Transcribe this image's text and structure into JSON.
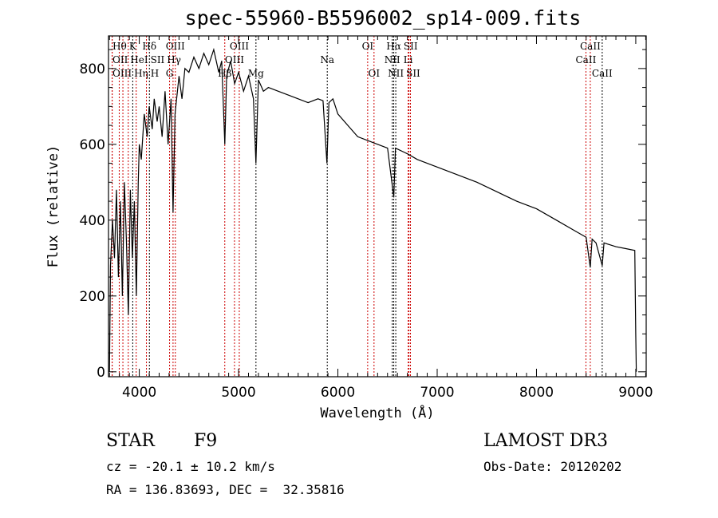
{
  "title": "spec-55960-B5596002_sp14-009.fits",
  "info": {
    "class": "STAR",
    "subclass": "F9",
    "cz": "cz = -20.1 ± 10.2 km/s",
    "radec": "RA = 136.83693, DEC =  32.35816",
    "survey": "LAMOST DR3",
    "obsdate": "Obs-Date: 20120202"
  },
  "chart_data": {
    "type": "line",
    "title": "spec-55960-B5596002_sp14-009.fits",
    "xlabel": "Wavelength (Å)",
    "ylabel": "Flux (relative)",
    "xlim": [
      3690,
      9105
    ],
    "ylim": [
      -13,
      886
    ],
    "xticks": [
      4000,
      5000,
      6000,
      7000,
      8000,
      9000
    ],
    "yticks": [
      0,
      200,
      400,
      600,
      800
    ],
    "x": [
      3700,
      3710,
      3730,
      3750,
      3770,
      3790,
      3810,
      3830,
      3850,
      3870,
      3890,
      3910,
      3930,
      3950,
      3970,
      3990,
      4000,
      4020,
      4050,
      4080,
      4100,
      4130,
      4150,
      4180,
      4200,
      4230,
      4260,
      4290,
      4320,
      4340,
      4360,
      4400,
      4430,
      4460,
      4500,
      4550,
      4600,
      4650,
      4700,
      4750,
      4800,
      4830,
      4861,
      4880,
      4920,
      4960,
      5000,
      5050,
      5100,
      5150,
      5175,
      5200,
      5250,
      5300,
      5400,
      5500,
      5600,
      5700,
      5800,
      5850,
      5890,
      5910,
      5950,
      6000,
      6100,
      6200,
      6300,
      6400,
      6500,
      6563,
      6580,
      6700,
      6800,
      6900,
      7000,
      7200,
      7400,
      7600,
      7800,
      8000,
      8200,
      8400,
      8500,
      8542,
      8560,
      8600,
      8662,
      8680,
      8800,
      8900,
      8990,
      9000,
      9005
    ],
    "y": [
      0,
      280,
      400,
      300,
      480,
      250,
      450,
      200,
      500,
      350,
      150,
      480,
      300,
      450,
      200,
      500,
      600,
      560,
      680,
      620,
      700,
      640,
      720,
      660,
      700,
      620,
      740,
      600,
      720,
      420,
      680,
      780,
      720,
      800,
      790,
      830,
      800,
      840,
      810,
      850,
      790,
      820,
      600,
      780,
      820,
      760,
      790,
      740,
      780,
      720,
      550,
      770,
      740,
      750,
      740,
      730,
      720,
      710,
      720,
      715,
      550,
      710,
      720,
      680,
      650,
      620,
      610,
      600,
      590,
      460,
      590,
      575,
      560,
      550,
      540,
      520,
      500,
      475,
      450,
      430,
      400,
      370,
      355,
      275,
      350,
      340,
      280,
      340,
      330,
      325,
      320,
      100,
      0
    ],
    "lines": [
      {
        "w": 3727,
        "label": "OII",
        "row": 1,
        "color": "#cc0000"
      },
      {
        "w": 3727,
        "label": "OIII",
        "row": 2,
        "color": "#cc0000"
      },
      {
        "w": 3798,
        "label": "Hθ",
        "row": 0,
        "color": "#cc0000"
      },
      {
        "w": 3835,
        "label": "Hη",
        "row": 2,
        "color": "#cc0000"
      },
      {
        "w": 3889,
        "label": "HeI",
        "row": 1,
        "color": "#cc0000"
      },
      {
        "w": 3934,
        "label": "K",
        "row": 0,
        "color": "#000000"
      },
      {
        "w": 3969,
        "label": "H",
        "row": 2,
        "color": "#cc0000"
      },
      {
        "w": 4072,
        "label": "SII",
        "row": 1,
        "color": "#cc0000"
      },
      {
        "w": 4102,
        "label": "Hδ",
        "row": 0,
        "color": "#000000"
      },
      {
        "w": 4305,
        "label": "G",
        "row": 2,
        "color": "#cc0000"
      },
      {
        "w": 4340,
        "label": "Hγ",
        "row": 1,
        "color": "#cc0000"
      },
      {
        "w": 4363,
        "label": "OIII",
        "row": 0,
        "color": "#cc0000"
      },
      {
        "w": 4861,
        "label": "Hβ",
        "row": 2,
        "color": "#cc0000"
      },
      {
        "w": 4959,
        "label": "OIII",
        "row": 1,
        "color": "#cc0000"
      },
      {
        "w": 5007,
        "label": "OIII",
        "row": 0,
        "color": "#cc0000"
      },
      {
        "w": 5175,
        "label": "Mg",
        "row": 2,
        "color": "#000000"
      },
      {
        "w": 5893,
        "label": "Na",
        "row": 1,
        "color": "#000000"
      },
      {
        "w": 6300,
        "label": "OI",
        "row": 0,
        "color": "#cc0000"
      },
      {
        "w": 6364,
        "label": "OI",
        "row": 2,
        "color": "#cc0000"
      },
      {
        "w": 6548,
        "label": "NII",
        "row": 1,
        "color": "#000000"
      },
      {
        "w": 6563,
        "label": "Hα",
        "row": 0,
        "color": "#000000"
      },
      {
        "w": 6583,
        "label": "NII",
        "row": 2,
        "color": "#000000"
      },
      {
        "w": 6708,
        "label": "Li",
        "row": 1,
        "color": "#cc0000"
      },
      {
        "w": 6716,
        "label": "SII",
        "row": 0,
        "color": "#cc0000"
      },
      {
        "w": 6731,
        "label": "SII",
        "row": 2,
        "color": "#cc0000"
      },
      {
        "w": 8498,
        "label": "CaII",
        "row": 1,
        "color": "#cc0000"
      },
      {
        "w": 8542,
        "label": "CaII",
        "row": 0,
        "color": "#cc0000"
      },
      {
        "w": 8662,
        "label": "CaII",
        "row": 2,
        "color": "#000000"
      }
    ]
  }
}
